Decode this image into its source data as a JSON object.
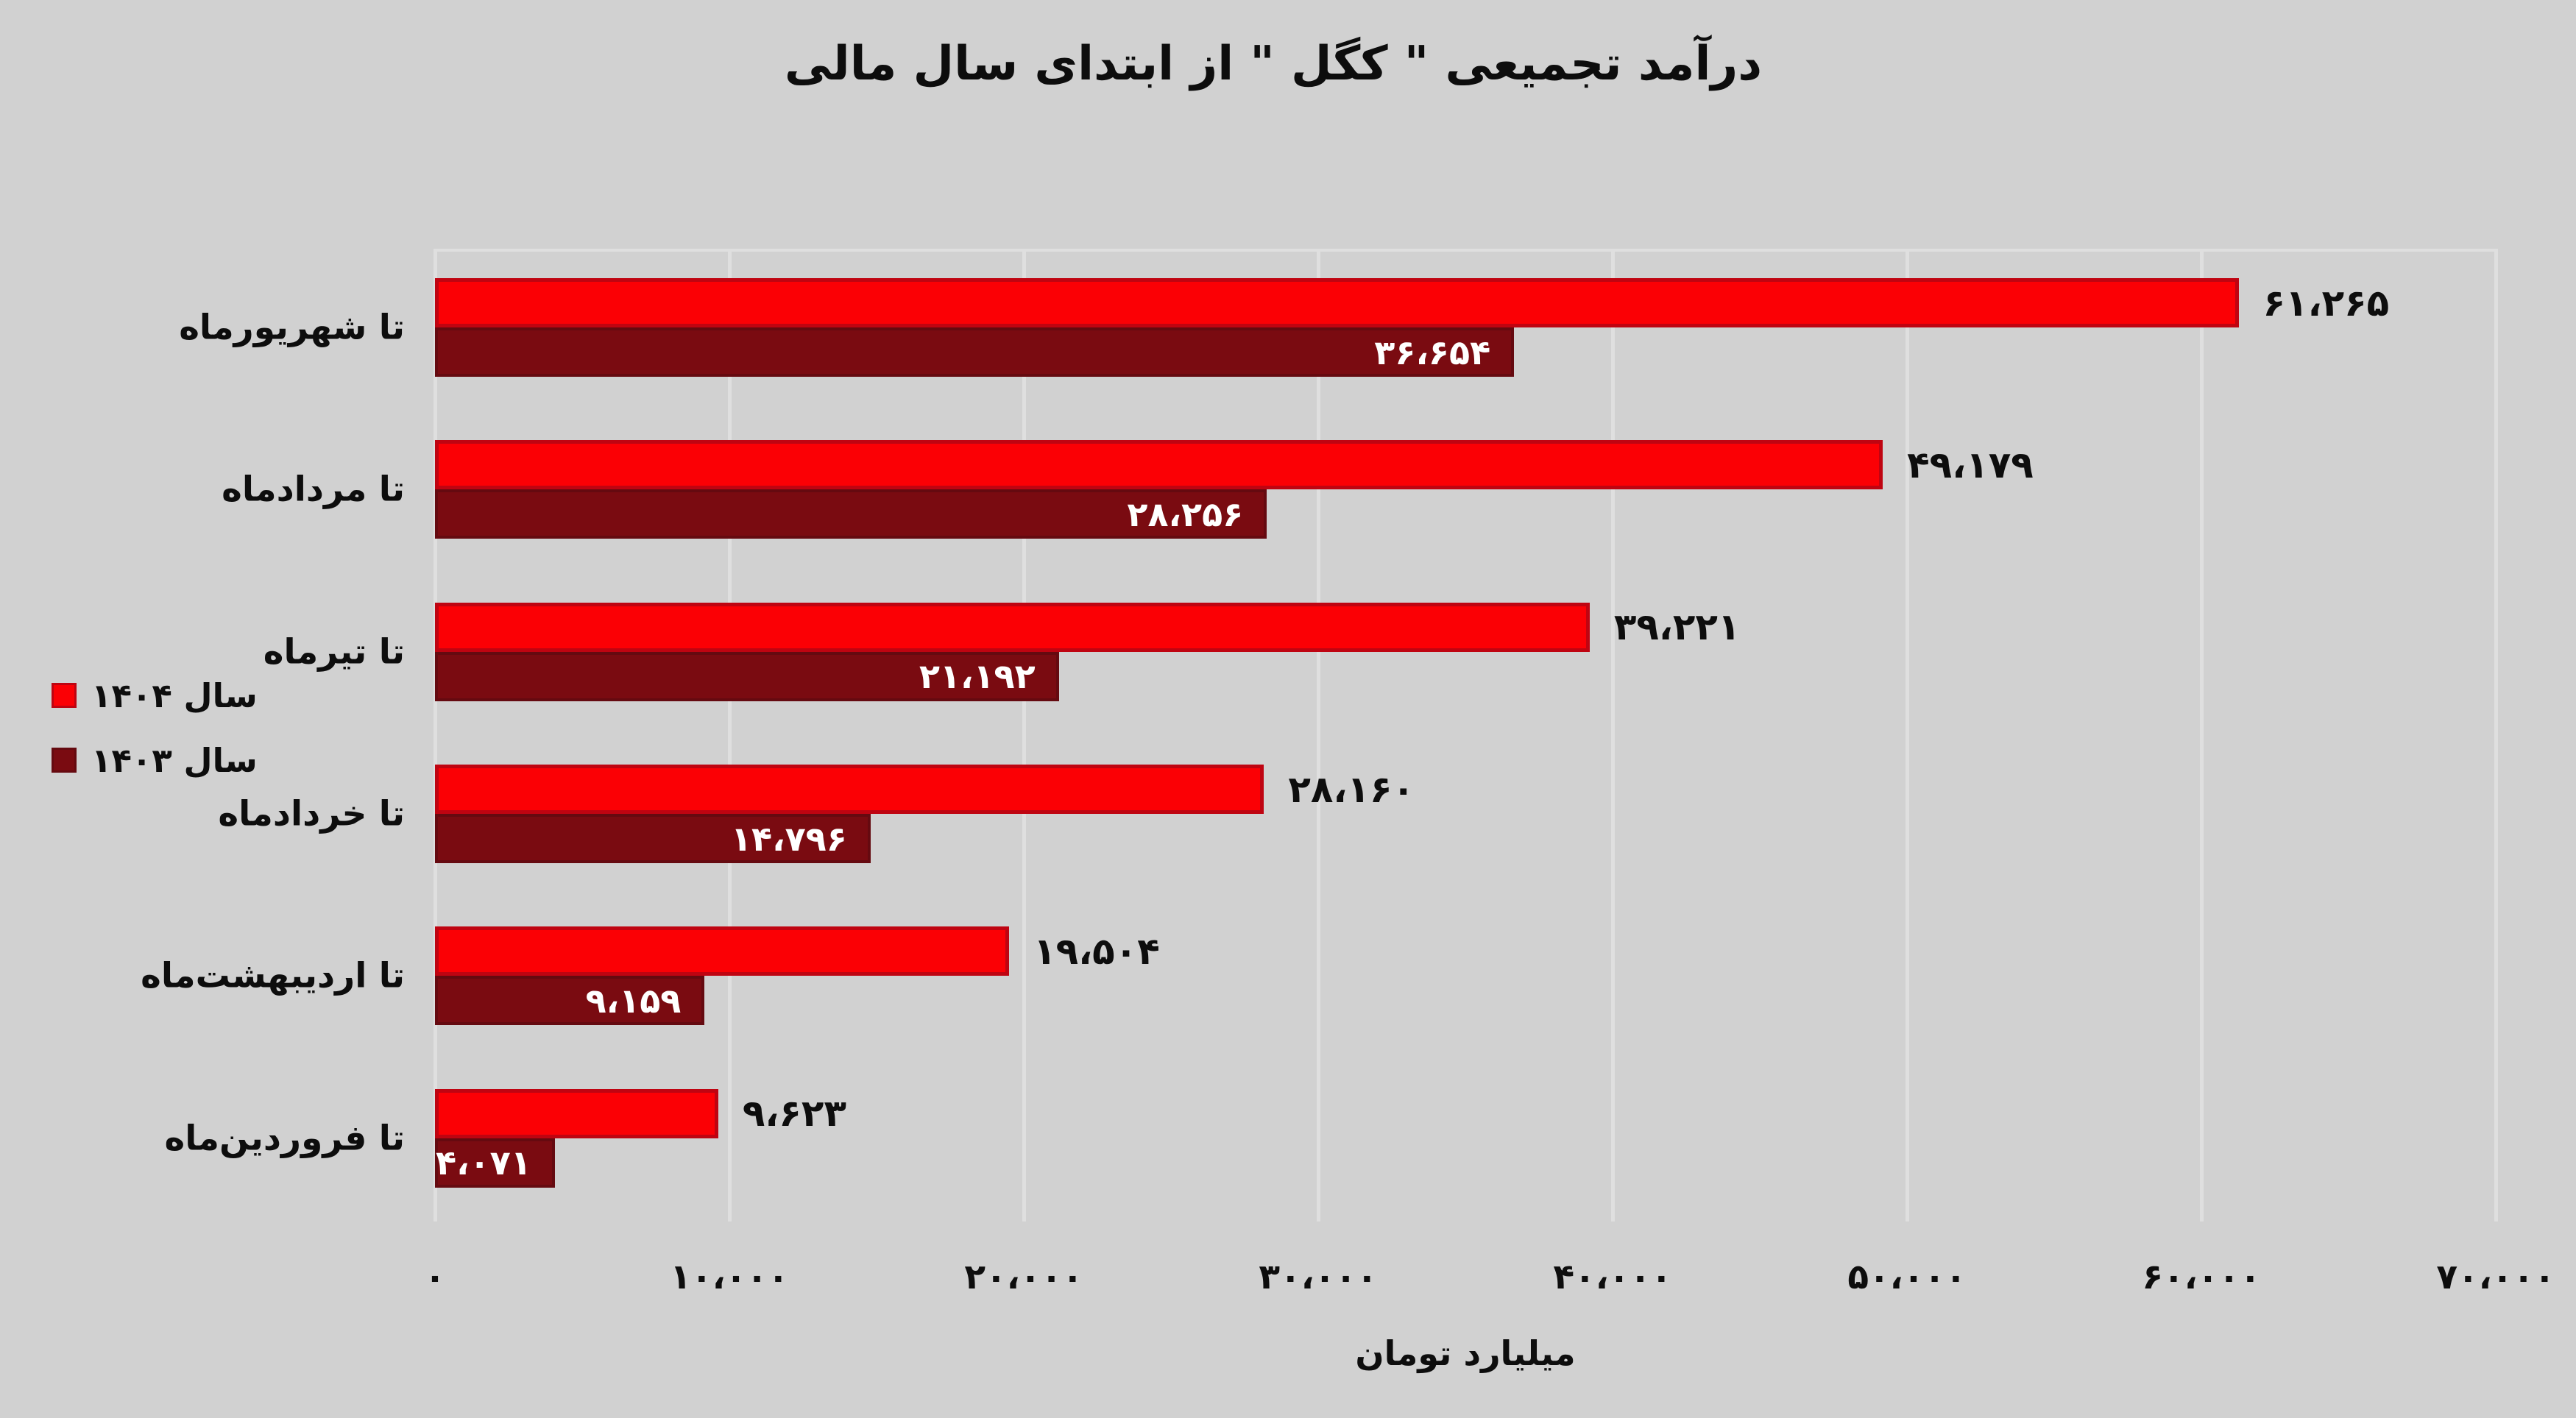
{
  "title": "درآمد تجمیعی \" کگل \" از ابتدای سال مالی",
  "colors": {
    "background": "#d1d1d1",
    "gridline": "#dfdfdf",
    "year1404_fill": "#fb0005",
    "year1404_border": "#bf0411",
    "year1403_fill": "#7a0b11",
    "year1403_border": "#650a10",
    "value_label_outside": "#0d0d0d",
    "value_label_inside": "#ffffff"
  },
  "legend": {
    "items": [
      {
        "label": "سال ۱۴۰۴",
        "series_key": "s1404"
      },
      {
        "label": "سال ۱۴۰۳",
        "series_key": "s1403"
      }
    ]
  },
  "chart_data": {
    "type": "bar",
    "orientation": "horizontal",
    "title": "درآمد تجمیعی \" کگل \" از ابتدای سال مالی",
    "categories": [
      "تا شهریورماه",
      "تا مردادماه",
      "تا تیرماه",
      "تا خردادماه",
      "تا اردیبهشت‌ماه",
      "تا فروردین‌ماه"
    ],
    "series": [
      {
        "name": "سال ۱۴۰۴",
        "values": [
          61265,
          49179,
          39221,
          28160,
          19504,
          9623
        ],
        "labels": [
          "۶۱،۲۶۵",
          "۴۹،۱۷۹",
          "۳۹،۲۲۱",
          "۲۸،۱۶۰",
          "۱۹،۵۰۴",
          "۹،۶۲۳"
        ],
        "label_position": "outside-end"
      },
      {
        "name": "سال ۱۴۰۳",
        "values": [
          36654,
          28256,
          21192,
          14796,
          9159,
          4071
        ],
        "labels": [
          "۳۶،۶۵۴",
          "۲۸،۲۵۶",
          "۲۱،۱۹۲",
          "۱۴،۷۹۶",
          "۹،۱۵۹",
          "۴،۰۷۱"
        ],
        "label_position": "inside-end"
      }
    ],
    "xlabel": "میلیارد تومان",
    "ylabel": "",
    "xlim": [
      0,
      70000
    ],
    "grid": "vertical",
    "legend_position": "left-middle",
    "xticks": {
      "values": [
        0,
        10000,
        20000,
        30000,
        40000,
        50000,
        60000,
        70000
      ],
      "labels": [
        "۰",
        "۱۰،۰۰۰",
        "۲۰،۰۰۰",
        "۳۰،۰۰۰",
        "۴۰،۰۰۰",
        "۵۰،۰۰۰",
        "۶۰،۰۰۰",
        "۷۰،۰۰۰"
      ]
    }
  }
}
